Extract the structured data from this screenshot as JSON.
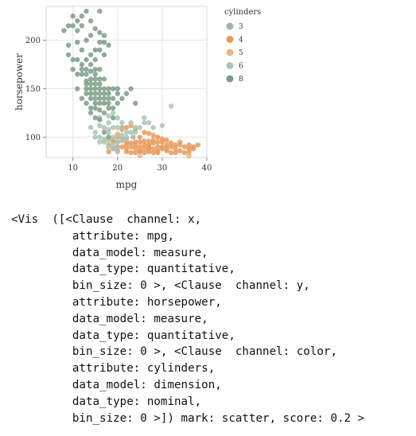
{
  "chart_data": {
    "type": "scatter",
    "xlabel": "mpg",
    "ylabel": "horsepower",
    "xlim": [
      4,
      40
    ],
    "ylim": [
      79,
      235
    ],
    "x_ticks": [
      "10",
      "20",
      "30",
      "40"
    ],
    "y_ticks": [
      "100",
      "150",
      "200"
    ],
    "grid": true,
    "legend_title": "cylinders",
    "legend_placement": "top-right",
    "series": [
      {
        "name": "3",
        "color": "#9fb5ad",
        "points": [
          [
            21,
            110
          ],
          [
            19,
            97
          ],
          [
            20,
            100
          ],
          [
            23.5,
            100
          ]
        ]
      },
      {
        "name": "4",
        "color": "#e89a5a",
        "points": [
          [
            18,
            92
          ],
          [
            19,
            95
          ],
          [
            20,
            90
          ],
          [
            21,
            98
          ],
          [
            22,
            95
          ],
          [
            22,
            88
          ],
          [
            23,
            90
          ],
          [
            24,
            92
          ],
          [
            24,
            88
          ],
          [
            25,
            95
          ],
          [
            25,
            90
          ],
          [
            26,
            88
          ],
          [
            26,
            92
          ],
          [
            27,
            90
          ],
          [
            27,
            96
          ],
          [
            28,
            94
          ],
          [
            28,
            88
          ],
          [
            29,
            90
          ],
          [
            29,
            86
          ],
          [
            30,
            88
          ],
          [
            31,
            92
          ],
          [
            31,
            86
          ],
          [
            32,
            90
          ],
          [
            32,
            84
          ],
          [
            33,
            88
          ],
          [
            34,
            92
          ],
          [
            34,
            86
          ],
          [
            35,
            90
          ],
          [
            36,
            92
          ],
          [
            36,
            85
          ],
          [
            37,
            88
          ],
          [
            38,
            92
          ],
          [
            25,
            100
          ],
          [
            26,
            105
          ],
          [
            24,
            108
          ],
          [
            22,
            110
          ],
          [
            23,
            112
          ],
          [
            21,
            108
          ],
          [
            20,
            103
          ],
          [
            28,
            102
          ],
          [
            27,
            104
          ],
          [
            29,
            100
          ],
          [
            30,
            98
          ],
          [
            31,
            97
          ],
          [
            24,
            95
          ],
          [
            25,
            85
          ],
          [
            26,
            84
          ],
          [
            27,
            85
          ],
          [
            28,
            84
          ],
          [
            22,
            85
          ],
          [
            23,
            84
          ],
          [
            30,
            90
          ],
          [
            33,
            84
          ],
          [
            35,
            84
          ],
          [
            29,
            95
          ],
          [
            27,
            92
          ],
          [
            19,
            88
          ],
          [
            18,
            85
          ],
          [
            20,
            86
          ],
          [
            32,
            94
          ],
          [
            34,
            95
          ],
          [
            26,
            96
          ],
          [
            23,
            94
          ],
          [
            21,
            90
          ],
          [
            24,
            84
          ],
          [
            28,
            97
          ],
          [
            30,
            95
          ],
          [
            31,
            88
          ],
          [
            25,
            86
          ],
          [
            27,
            88
          ],
          [
            29,
            84
          ],
          [
            36,
            88
          ],
          [
            37,
            90
          ],
          [
            33,
            92
          ],
          [
            22,
            92
          ],
          [
            20,
            95
          ]
        ]
      },
      {
        "name": "5",
        "color": "#f2b483",
        "points": [
          [
            20,
            103
          ],
          [
            25,
            77
          ],
          [
            36,
            67
          ]
        ]
      },
      {
        "name": "6",
        "color": "#aac4b6",
        "points": [
          [
            18,
            105
          ],
          [
            19,
            100
          ],
          [
            20,
            95
          ],
          [
            21,
            110
          ],
          [
            22,
            105
          ],
          [
            18,
            115
          ],
          [
            17,
            110
          ],
          [
            16,
            100
          ],
          [
            15,
            105
          ],
          [
            18,
            97
          ],
          [
            19,
            110
          ],
          [
            20,
            120
          ],
          [
            21,
            115
          ],
          [
            22,
            100
          ],
          [
            24,
            110
          ],
          [
            19,
            88
          ],
          [
            17,
            95
          ],
          [
            16,
            112
          ],
          [
            18,
            122
          ],
          [
            20,
            110
          ],
          [
            21,
            102
          ],
          [
            23,
            105
          ],
          [
            25,
            110
          ],
          [
            26,
            115
          ],
          [
            19,
            125
          ],
          [
            15,
            100
          ],
          [
            17,
            98
          ],
          [
            18,
            90
          ],
          [
            20,
            85
          ],
          [
            22,
            98
          ],
          [
            24,
            105
          ],
          [
            16,
            120
          ],
          [
            14,
            110
          ],
          [
            18,
            108
          ],
          [
            21,
            96
          ],
          [
            23,
            115
          ],
          [
            26,
            120
          ],
          [
            28,
            110
          ],
          [
            30,
            112
          ],
          [
            32,
            132
          ],
          [
            27,
            115
          ],
          [
            20,
            90
          ],
          [
            16,
            95
          ],
          [
            19,
            92
          ]
        ]
      },
      {
        "name": "8",
        "color": "#7d9e86",
        "points": [
          [
            10,
            215
          ],
          [
            11,
            210
          ],
          [
            12,
            215
          ],
          [
            13,
            200
          ],
          [
            14,
            205
          ],
          [
            11,
            198
          ],
          [
            12,
            190
          ],
          [
            13,
            180
          ],
          [
            14,
            175
          ],
          [
            15,
            180
          ],
          [
            16,
            190
          ],
          [
            15,
            170
          ],
          [
            13,
            165
          ],
          [
            14,
            160
          ],
          [
            15,
            155
          ],
          [
            16,
            150
          ],
          [
            17,
            145
          ],
          [
            16,
            160
          ],
          [
            15,
            150
          ],
          [
            14,
            145
          ],
          [
            13,
            150
          ],
          [
            12,
            165
          ],
          [
            11,
            180
          ],
          [
            10,
            170
          ],
          [
            9,
            195
          ],
          [
            8,
            210
          ],
          [
            9,
            215
          ],
          [
            10,
            225
          ],
          [
            11,
            220
          ],
          [
            12,
            225
          ],
          [
            13,
            230
          ],
          [
            16,
            230
          ],
          [
            14,
            220
          ],
          [
            15,
            212
          ],
          [
            16,
            208
          ],
          [
            17,
            198
          ],
          [
            18,
            195
          ],
          [
            17,
            185
          ],
          [
            14,
            140
          ],
          [
            15,
            140
          ],
          [
            16,
            140
          ],
          [
            17,
            135
          ],
          [
            18,
            130
          ],
          [
            19,
            140
          ],
          [
            15,
            130
          ],
          [
            16,
            128
          ],
          [
            17,
            125
          ],
          [
            14,
            130
          ],
          [
            13,
            135
          ],
          [
            12,
            140
          ],
          [
            11,
            150
          ],
          [
            18,
            150
          ],
          [
            13,
            145
          ],
          [
            14,
            150
          ],
          [
            15,
            165
          ],
          [
            16,
            170
          ],
          [
            17,
            150
          ],
          [
            18,
            140
          ],
          [
            19,
            120
          ],
          [
            20,
            150
          ],
          [
            16,
            118
          ],
          [
            17,
            105
          ],
          [
            18,
            100
          ],
          [
            14,
            125
          ],
          [
            15,
            120
          ],
          [
            16,
            135
          ],
          [
            13,
            158
          ],
          [
            12,
            170
          ],
          [
            14,
            168
          ],
          [
            15,
            160
          ],
          [
            16,
            155
          ],
          [
            17,
            160
          ],
          [
            11,
            165
          ],
          [
            10,
            180
          ],
          [
            9,
            185
          ],
          [
            12,
            175
          ],
          [
            13,
            170
          ],
          [
            14,
            185
          ],
          [
            15,
            190
          ],
          [
            16,
            198
          ],
          [
            17,
            205
          ],
          [
            19,
            130
          ],
          [
            20,
            135
          ],
          [
            18,
            145
          ],
          [
            15,
            145
          ],
          [
            14,
            155
          ],
          [
            13,
            155
          ],
          [
            16,
            145
          ],
          [
            15,
            135
          ],
          [
            17,
            140
          ],
          [
            18,
            135
          ],
          [
            19,
            150
          ],
          [
            20,
            145
          ],
          [
            21,
            140
          ],
          [
            22,
            145
          ],
          [
            23,
            150
          ],
          [
            24,
            135
          ]
        ]
      }
    ]
  },
  "vis_text": [
    "<Vis  ([<Clause  channel: x,",
    "         attribute: mpg,",
    "         data_model: measure,",
    "         data_type: quantitative,",
    "         bin_size: 0 >, <Clause  channel: y,",
    "         attribute: horsepower,",
    "         data_model: measure,",
    "         data_type: quantitative,",
    "         bin_size: 0 >, <Clause  channel: color,",
    "         attribute: cylinders,",
    "         data_model: dimension,",
    "         data_type: nominal,",
    "         bin_size: 0 >]) mark: scatter, score: 0.2 >"
  ]
}
